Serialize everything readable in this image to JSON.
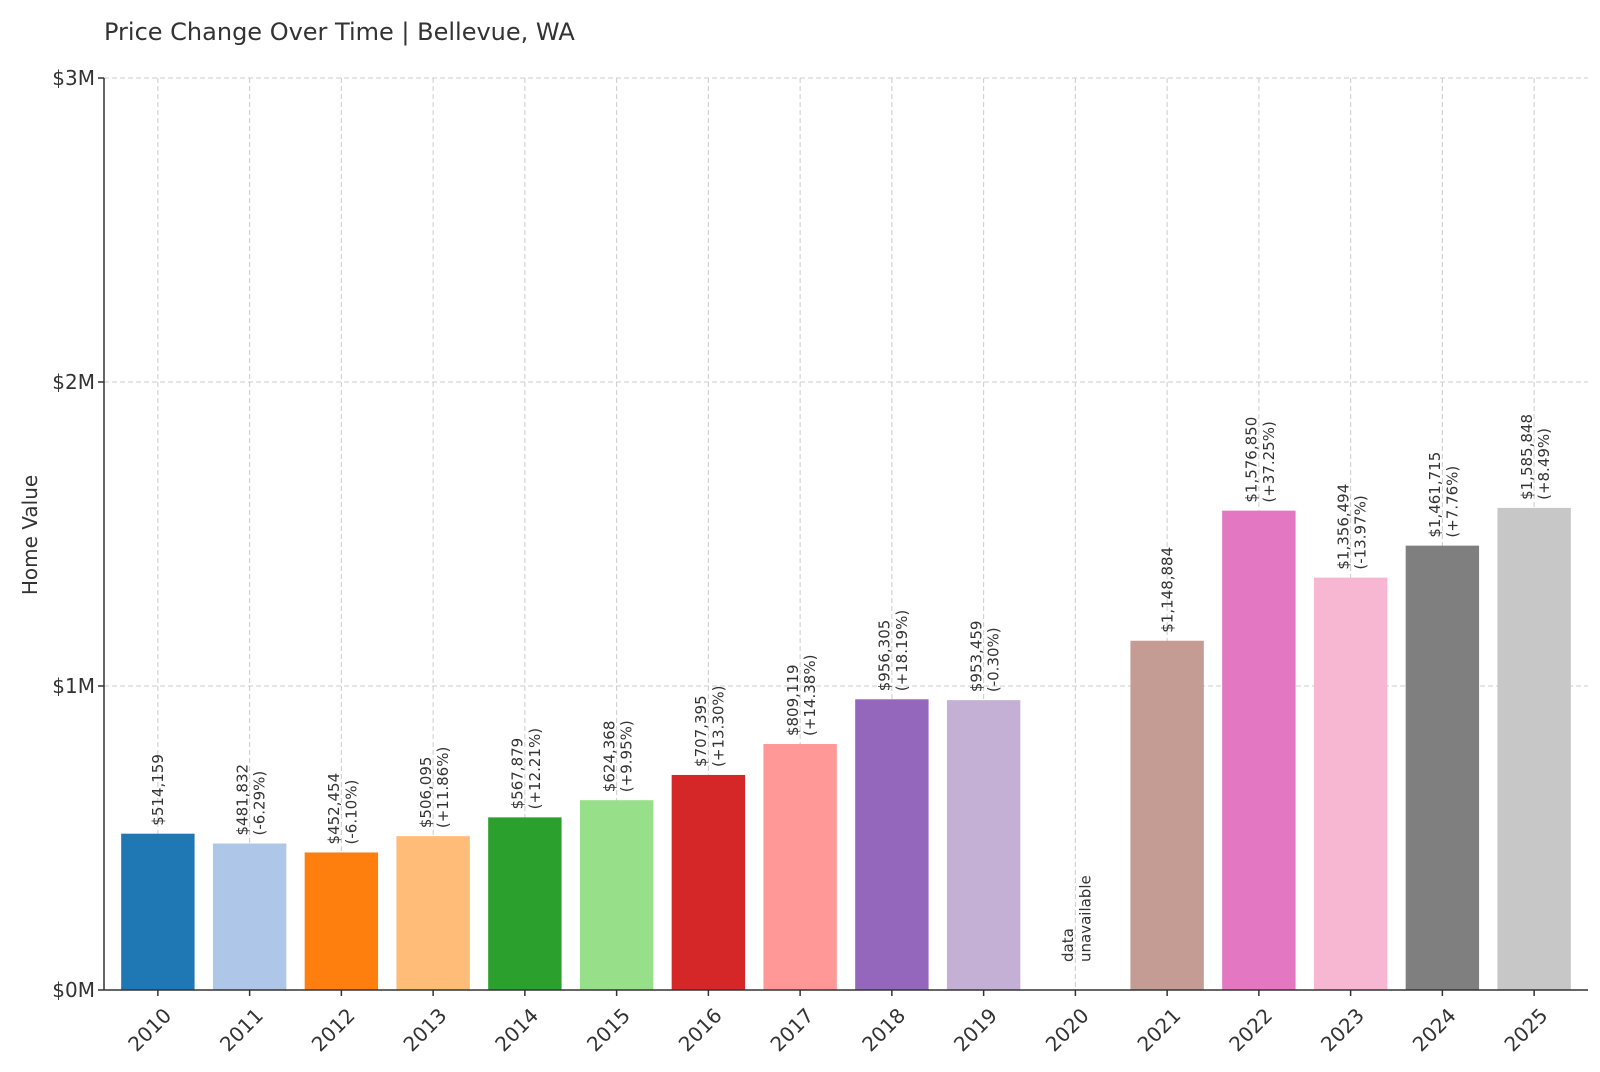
{
  "chart_data": {
    "type": "bar",
    "title": "Price Change Over Time | Bellevue, WA",
    "xlabel": "",
    "ylabel": "Home Value",
    "ylim": [
      0,
      3000000
    ],
    "yticks": [
      {
        "value": 0,
        "label": "$0M"
      },
      {
        "value": 1000000,
        "label": "$1M"
      },
      {
        "value": 2000000,
        "label": "$2M"
      },
      {
        "value": 3000000,
        "label": "$3M"
      }
    ],
    "grid": true,
    "categories": [
      "2010",
      "2011",
      "2012",
      "2013",
      "2014",
      "2015",
      "2016",
      "2017",
      "2018",
      "2019",
      "2020",
      "2021",
      "2022",
      "2023",
      "2024",
      "2025"
    ],
    "values": [
      514159,
      481832,
      452454,
      506095,
      567879,
      624368,
      707395,
      809119,
      956305,
      953459,
      null,
      1148884,
      1576850,
      1356494,
      1461715,
      1585848
    ],
    "value_labels": [
      "$514,159",
      "$481,832",
      "$452,454",
      "$506,095",
      "$567,879",
      "$624,368",
      "$707,395",
      "$809,119",
      "$956,305",
      "$953,459",
      "",
      "$1,148,884",
      "$1,576,850",
      "$1,356,494",
      "$1,461,715",
      "$1,585,848"
    ],
    "change_labels": [
      "",
      "(-6.29%)",
      "(-6.10%)",
      "(+11.86%)",
      "(+12.21%)",
      "(+9.95%)",
      "(+13.30%)",
      "(+14.38%)",
      "(+18.19%)",
      "(-0.30%)",
      "",
      "",
      "(+37.25%)",
      "(-13.97%)",
      "(+7.76%)",
      "(+8.49%)"
    ],
    "missing_label": [
      "data",
      "unavailable"
    ],
    "colors": [
      "#1f77b4",
      "#aec7e8",
      "#ff7f0e",
      "#ffbb78",
      "#2ca02c",
      "#98df8a",
      "#d62728",
      "#ff9896",
      "#9467bd",
      "#c5b0d5",
      "#8c564b",
      "#c49c94",
      "#e377c2",
      "#f7b6d2",
      "#7f7f7f",
      "#c7c7c7"
    ]
  }
}
